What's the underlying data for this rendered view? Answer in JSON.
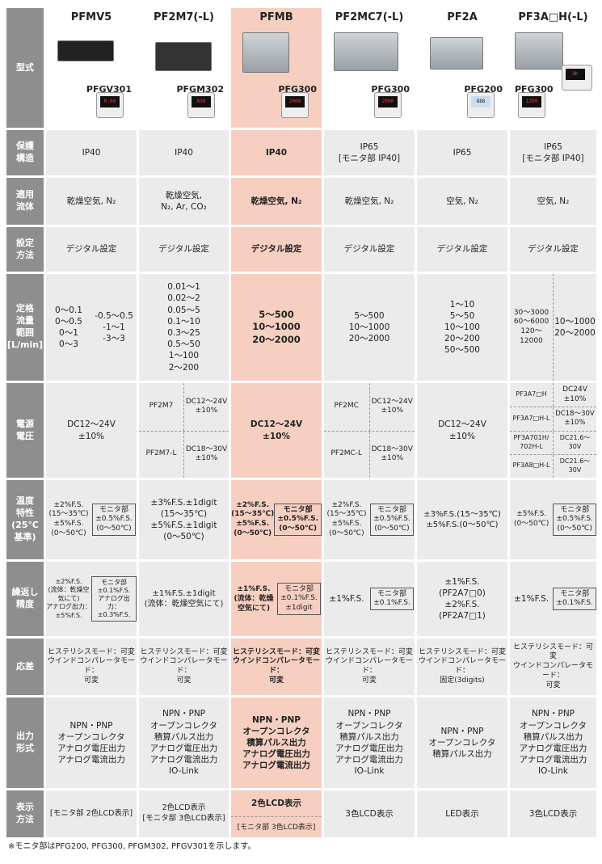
{
  "row_headers": {
    "model": "型式",
    "protection": "保護\n構造",
    "fluid": "適用\n流体",
    "setting": "設定\n方法",
    "flow_range": "定格\n流量\n範囲\n[L/min]",
    "power": "電源\n電圧",
    "temp": "温度\n特性\n(25℃\n基準)",
    "repeat": "繰返し\n精度",
    "response": "応差",
    "output": "出力\n形式",
    "display": "表示\n方法"
  },
  "models": [
    {
      "name": "PFMV5",
      "monitor": "PFGV301"
    },
    {
      "name": "PF2M7(-L)",
      "monitor": "PFGM302"
    },
    {
      "name": "PFMB",
      "monitor": "PFG300"
    },
    {
      "name": "PF2MC7(-L)",
      "monitor": "PFG300"
    },
    {
      "name": "PF2A",
      "monitor": "PFG200"
    },
    {
      "name": "PF3A□H(-L)",
      "monitor": "PFG300"
    }
  ],
  "protection": [
    "IP40",
    "IP40",
    "IP40",
    "IP65\n[モニタ部 IP40]",
    "IP65",
    "IP65\n[モニタ部 IP40]"
  ],
  "fluid": [
    "乾燥空気, N₂",
    "乾燥空気,\nN₂, Ar, CO₂",
    "乾燥空気, N₂",
    "乾燥空気, N₂",
    "空気, N₂",
    "空気, N₂"
  ],
  "setting": [
    "デジタル設定",
    "デジタル設定",
    "デジタル設定",
    "デジタル設定",
    "デジタル設定",
    "デジタル設定"
  ],
  "flow_range": {
    "c0a": "0～0.1\n0～0.5\n0～1\n0～3",
    "c0b": "-0.5～0.5\n-1～1\n-3～3",
    "c1": "0.01～1\n0.02～2\n0.05～5\n0.1～10\n0.3～25\n0.5～50\n1～100\n2～200",
    "c2": "5～500\n10～1000\n20～2000",
    "c3": "5～500\n10～1000\n20～2000",
    "c4": "1～10\n5～50\n10～100\n20～200\n50～500",
    "c5a": "30～3000\n60～6000\n120～12000",
    "c5b": "10～1000\n20～2000"
  },
  "power": {
    "c0": "DC12～24V\n±10%",
    "c1": [
      {
        "model": "PF2M7",
        "v": "DC12～24V\n±10%"
      },
      {
        "model": "PF2M7-L",
        "v": "DC18～30V\n±10%"
      }
    ],
    "c2": "DC12～24V\n±10%",
    "c3": [
      {
        "model": "PF2MC",
        "v": "DC12～24V\n±10%"
      },
      {
        "model": "PF2MC-L",
        "v": "DC18～30V\n±10%"
      }
    ],
    "c4": "DC12～24V\n±10%",
    "c5": [
      {
        "model": "PF3A7□H",
        "v": "DC24V\n±10%"
      },
      {
        "model": "PF3A7□H-L",
        "v": "DC18～30V\n±10%"
      },
      {
        "model": "PF3A701H/\n702H-L",
        "v": "DC21.6～30V"
      },
      {
        "model": "PF3A8□H-L",
        "v": "DC21.6～30V"
      }
    ]
  },
  "temp": {
    "c0": "±2%F.S.\n(15～35℃)\n±5%F.S.\n(0～50℃)",
    "c0box": "モニタ部\n±0.5%F.S.\n(0～50℃)",
    "c1": "±3%F.S.±1digit\n(15～35℃)\n±5%F.S.±1digit\n(0～50℃)",
    "c2": "±2%F.S.\n(15～35℃)\n±5%F.S.\n(0～50℃)",
    "c2box": "モニタ部\n±0.5%F.S.\n(0～50℃)",
    "c3": "±2%F.S.\n(15～35℃)\n±5%F.S.\n(0～50℃)",
    "c3box": "モニタ部\n±0.5%F.S.\n(0～50℃)",
    "c4": "±3%F.S.(15～35℃)\n±5%F.S.(0～50℃)",
    "c5": "±5%F.S.\n(0～50℃)",
    "c5box": "モニタ部\n±0.5%F.S.\n(0～50℃)"
  },
  "repeat": {
    "c0": "±2%F.S.\n(流体：乾燥空気にて)\nアナログ出力：\n±5%F.S.",
    "c0box": "モニタ部\n±0.1%F.S.\nアナログ出力：\n±0.3%F.S.",
    "c1": "±1%F.S.±1digit\n(流体：乾燥空気にて)",
    "c2": "±1%F.S.\n(流体：乾燥空気にて)",
    "c2box": "モニタ部\n±0.1%F.S.\n±1digit",
    "c3": "±1%F.S.",
    "c3box": "モニタ部\n±0.1%F.S.",
    "c4": "±1%F.S.\n(PF2A7□0)\n±2%F.S.\n(PF2A7□1)",
    "c5": "±1%F.S.",
    "c5box": "モニタ部\n±0.1%F.S."
  },
  "response": [
    "ヒステリシスモード：可変\nウインドコンパレータモード：\n可変",
    "ヒステリシスモード：可変\nウインドコンパレータモード：\n可変",
    "ヒステリシスモード：可変\nウインドコンパレータモード：\n可変",
    "ヒステリシスモード：可変\nウインドコンパレータモード：\n可変",
    "ヒステリシスモード：可変\nウインドコンパレータモード：\n固定(3digits)",
    "ヒステリシスモード：可変\nウインドコンパレータモード：\n可変"
  ],
  "output": [
    "NPN・PNP\nオープンコレクタ\nアナログ電圧出力\nアナログ電流出力",
    "NPN・PNP\nオープンコレクタ\n積算パルス出力\nアナログ電圧出力\nアナログ電流出力\nIO-Link",
    "NPN・PNP\nオープンコレクタ\n積算パルス出力\nアナログ電圧出力\nアナログ電流出力",
    "NPN・PNP\nオープンコレクタ\n積算パルス出力\nアナログ電圧出力\nアナログ電流出力\nIO-Link",
    "NPN・PNP\nオープンコレクタ\n積算パルス出力",
    "NPN・PNP\nオープンコレクタ\n積算パルス出力\nアナログ電圧出力\nアナログ電流出力\nIO-Link"
  ],
  "display": {
    "c0": "[モニタ部 2色LCD表示]",
    "c1": "2色LCD表示\n[モニタ部 3色LCD表示]",
    "c2": "2色LCD表示",
    "c2sub": "[モニタ部 3色LCD表示]",
    "c3": "3色LCD表示",
    "c4": "LED表示",
    "c5": "3色LCD表示"
  },
  "footnote": "※モニタ部はPFG200, PFG300, PFGM302, PFGV301を示します。",
  "colors": {
    "header_bg": "#8e8e8e",
    "cell_bg": "#ebebeb",
    "highlight_bg": "#f6cfc1"
  }
}
